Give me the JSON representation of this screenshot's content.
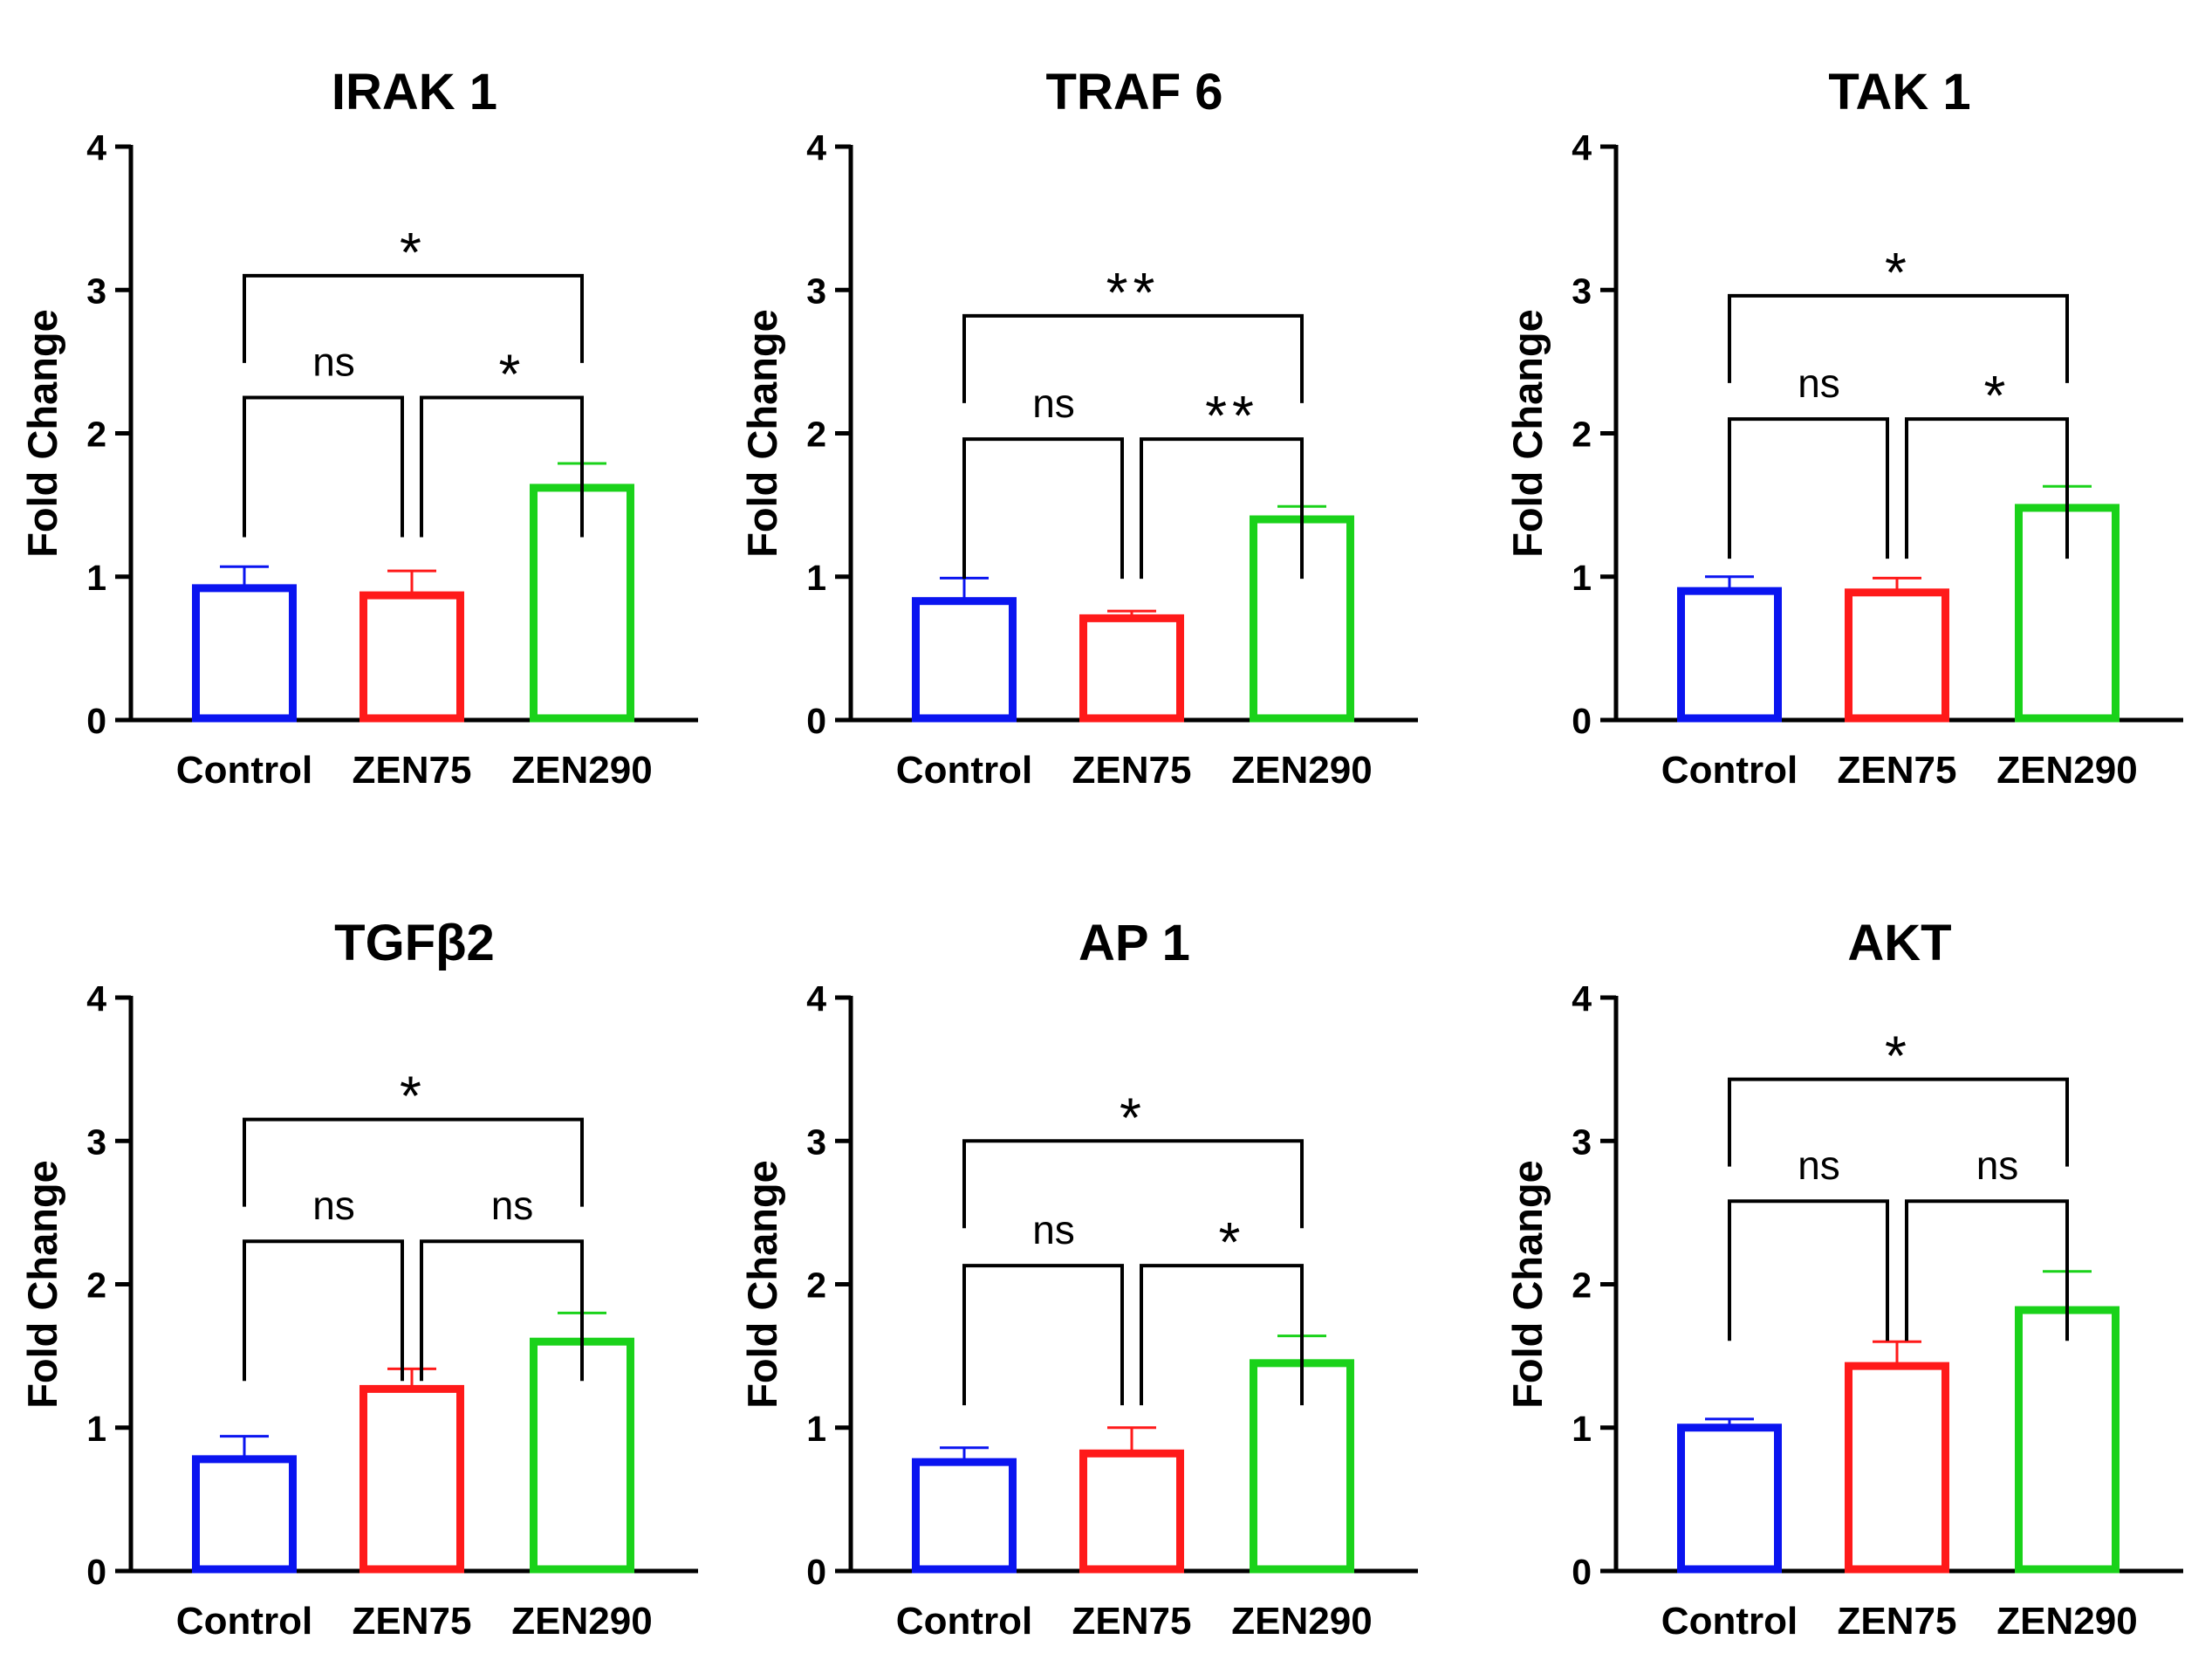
{
  "colors": {
    "Control": "#0a14f0",
    "ZEN75": "#ff1a1a",
    "ZEN290": "#1ad21a",
    "axis": "#000000"
  },
  "chart_data": [
    {
      "type": "bar",
      "title": "IRAK 1",
      "xlabel": "",
      "ylabel": "Fold Change",
      "ylim": [
        0,
        4
      ],
      "yticks": [
        "0",
        "1",
        "2",
        "3",
        "4"
      ],
      "categories": [
        "Control",
        "ZEN75",
        "ZEN290"
      ],
      "values": [
        0.92,
        0.87,
        1.62
      ],
      "errors": [
        0.15,
        0.17,
        0.17
      ],
      "significance": [
        {
          "from": 0,
          "to": 1,
          "label": "ns",
          "y": 2.25
        },
        {
          "from": 1,
          "to": 2,
          "label": "*",
          "y": 2.25
        },
        {
          "from": 0,
          "to": 2,
          "label": "*",
          "y": 3.1
        }
      ]
    },
    {
      "type": "bar",
      "title": "TRAF 6",
      "xlabel": "",
      "ylabel": "Fold Change",
      "ylim": [
        0,
        4
      ],
      "yticks": [
        "0",
        "1",
        "2",
        "3",
        "4"
      ],
      "categories": [
        "Control",
        "ZEN75",
        "ZEN290"
      ],
      "values": [
        0.83,
        0.71,
        1.4
      ],
      "errors": [
        0.16,
        0.05,
        0.09
      ],
      "significance": [
        {
          "from": 0,
          "to": 1,
          "label": "ns",
          "y": 1.96
        },
        {
          "from": 1,
          "to": 2,
          "label": "**",
          "y": 1.96
        },
        {
          "from": 0,
          "to": 2,
          "label": "**",
          "y": 2.82
        }
      ]
    },
    {
      "type": "bar",
      "title": "TAK 1",
      "xlabel": "",
      "ylabel": "Fold Change",
      "ylim": [
        0,
        4
      ],
      "yticks": [
        "0",
        "1",
        "2",
        "3",
        "4"
      ],
      "categories": [
        "Control",
        "ZEN75",
        "ZEN290"
      ],
      "values": [
        0.9,
        0.89,
        1.48
      ],
      "errors": [
        0.1,
        0.1,
        0.15
      ],
      "significance": [
        {
          "from": 0,
          "to": 1,
          "label": "ns",
          "y": 2.1
        },
        {
          "from": 1,
          "to": 2,
          "label": "*",
          "y": 2.1
        },
        {
          "from": 0,
          "to": 2,
          "label": "*",
          "y": 2.96
        }
      ]
    },
    {
      "type": "bar",
      "title": "TGFβ2",
      "xlabel": "",
      "ylabel": "Fold Change",
      "ylim": [
        0,
        4
      ],
      "yticks": [
        "0",
        "1",
        "2",
        "3",
        "4"
      ],
      "categories": [
        "Control",
        "ZEN75",
        "ZEN290"
      ],
      "values": [
        0.78,
        1.27,
        1.6
      ],
      "errors": [
        0.16,
        0.14,
        0.2
      ],
      "significance": [
        {
          "from": 0,
          "to": 1,
          "label": "ns",
          "y": 2.3
        },
        {
          "from": 1,
          "to": 2,
          "label": "ns",
          "y": 2.3
        },
        {
          "from": 0,
          "to": 2,
          "label": "*",
          "y": 3.15
        }
      ]
    },
    {
      "type": "bar",
      "title": "AP 1",
      "xlabel": "",
      "ylabel": "Fold Change",
      "ylim": [
        0,
        4
      ],
      "yticks": [
        "0",
        "1",
        "2",
        "3",
        "4"
      ],
      "categories": [
        "Control",
        "ZEN75",
        "ZEN290"
      ],
      "values": [
        0.76,
        0.82,
        1.45
      ],
      "errors": [
        0.1,
        0.18,
        0.19
      ],
      "significance": [
        {
          "from": 0,
          "to": 1,
          "label": "ns",
          "y": 2.13
        },
        {
          "from": 1,
          "to": 2,
          "label": "*",
          "y": 2.13
        },
        {
          "from": 0,
          "to": 2,
          "label": "*",
          "y": 3.0
        }
      ]
    },
    {
      "type": "bar",
      "title": "AKT",
      "xlabel": "",
      "ylabel": "Fold Change",
      "ylim": [
        0,
        4
      ],
      "yticks": [
        "0",
        "1",
        "2",
        "3",
        "4"
      ],
      "categories": [
        "Control",
        "ZEN75",
        "ZEN290"
      ],
      "values": [
        1.0,
        1.43,
        1.82
      ],
      "errors": [
        0.06,
        0.17,
        0.27
      ],
      "significance": [
        {
          "from": 0,
          "to": 1,
          "label": "ns",
          "y": 2.58
        },
        {
          "from": 1,
          "to": 2,
          "label": "ns",
          "y": 2.58
        },
        {
          "from": 0,
          "to": 2,
          "label": "*",
          "y": 3.43
        }
      ]
    }
  ]
}
